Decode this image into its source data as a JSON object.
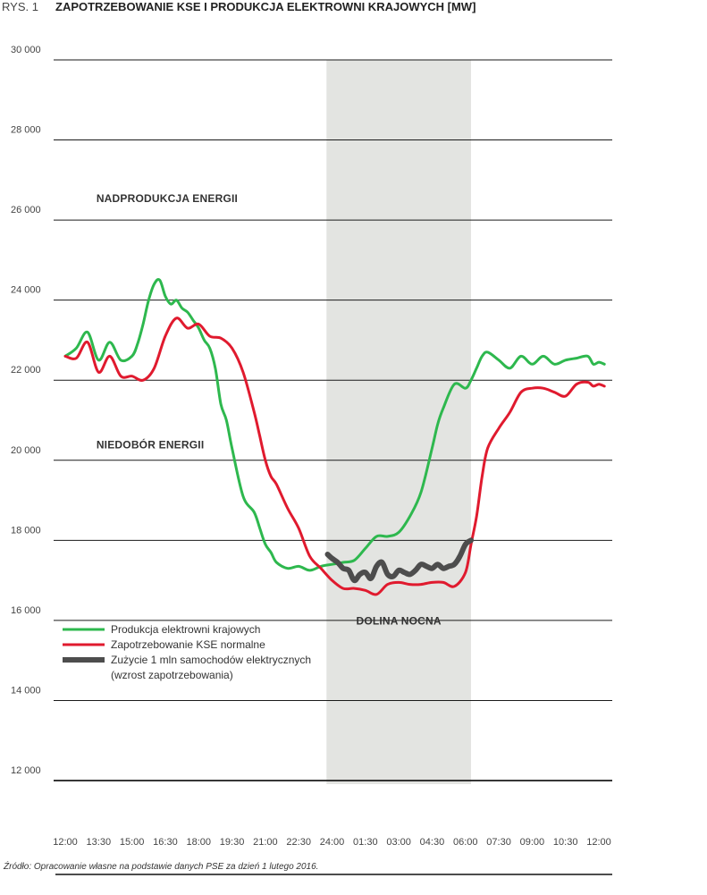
{
  "figure": {
    "label": "RYS. 1",
    "title": "ZAPOTRZEBOWANIE KSE I PRODUKCJA ELEKTROWNI KRAJOWYCH [MW]",
    "source": "Źródło: Opracowanie własne na podstawie danych PSE za dzień 1 lutego 2016."
  },
  "colors": {
    "production": "#2eb84e",
    "demand": "#e01a2e",
    "ev": "#4d4d4d",
    "shade": "#e3e4e1",
    "grid": "#1a1a1a"
  },
  "chart_data": {
    "type": "line",
    "title": "ZAPOTRZEBOWANIE KSE I PRODUKCJA ELEKTROWNI KRAJOWYCH [MW]",
    "xlabel": "",
    "ylabel": "",
    "ylim": [
      12000,
      30000
    ],
    "yticks": [
      "30 000",
      "28 000",
      "26 000",
      "24 000",
      "22 000",
      "20 000",
      "18 000",
      "16 000",
      "14 000",
      "12 000"
    ],
    "ytick_values": [
      30000,
      28000,
      26000,
      24000,
      22000,
      20000,
      18000,
      16000,
      14000,
      12000
    ],
    "xticks": [
      "12:00",
      "13:30",
      "15:00",
      "16:30",
      "18:00",
      "19:30",
      "21:00",
      "22:30",
      "24:00",
      "01:30",
      "03:00",
      "04:30",
      "06:00",
      "07:30",
      "09:00",
      "10:30",
      "12:00"
    ],
    "xlim_hours": [
      12,
      36
    ],
    "grid": true,
    "legend_position": "bottom-left",
    "shaded_region": {
      "from_hour": 23.75,
      "to_hour": 30.25,
      "label": "DOLINA NOCNA"
    },
    "annotations": [
      {
        "text": "NADPRODUKCJA ENERGII",
        "hour": 13.4,
        "value": 26450
      },
      {
        "text": "NIEDOBÓR ENERGII",
        "hour": 13.4,
        "value": 20300
      }
    ],
    "series": [
      {
        "name": "Produkcja elektrowni krajowych",
        "color": "#2eb84e",
        "width": 3,
        "x": [
          12.0,
          12.5,
          13.0,
          13.5,
          14.0,
          14.5,
          15.0,
          15.25,
          15.5,
          15.75,
          16.0,
          16.25,
          16.5,
          16.75,
          17.0,
          17.25,
          17.5,
          17.75,
          18.0,
          18.25,
          18.5,
          18.75,
          19.0,
          19.25,
          19.5,
          20.0,
          20.5,
          20.75,
          21.0,
          21.25,
          21.5,
          22.0,
          22.5,
          23.0,
          23.5,
          24.0,
          24.5,
          25.0,
          25.5,
          26.0,
          26.5,
          27.0,
          27.5,
          28.0,
          28.5,
          28.75,
          29.0,
          29.5,
          30.0,
          30.25,
          30.5,
          30.75,
          31.0,
          31.5,
          32.0,
          32.5,
          33.0,
          33.5,
          34.0,
          34.5,
          35.0,
          35.5,
          35.75,
          36.0,
          36.25
        ],
        "values": [
          22600,
          22800,
          23200,
          22500,
          22950,
          22500,
          22600,
          22900,
          23400,
          24000,
          24400,
          24500,
          24100,
          23900,
          24000,
          23800,
          23700,
          23500,
          23300,
          23000,
          22800,
          22300,
          21400,
          21000,
          20300,
          19100,
          18700,
          18300,
          17900,
          17700,
          17450,
          17300,
          17350,
          17250,
          17350,
          17400,
          17450,
          17500,
          17800,
          18100,
          18100,
          18200,
          18600,
          19200,
          20300,
          20900,
          21300,
          21900,
          21800,
          22000,
          22300,
          22600,
          22700,
          22500,
          22300,
          22600,
          22400,
          22600,
          22400,
          22500,
          22550,
          22600,
          22400,
          22450,
          22400
        ]
      },
      {
        "name": "Zapotrzebowanie KSE normalne",
        "color": "#e01a2e",
        "width": 3,
        "x": [
          12.0,
          12.5,
          13.0,
          13.5,
          14.0,
          14.5,
          15.0,
          15.5,
          16.0,
          16.5,
          17.0,
          17.5,
          18.0,
          18.5,
          19.0,
          19.5,
          20.0,
          20.5,
          20.75,
          21.0,
          21.25,
          21.5,
          22.0,
          22.5,
          23.0,
          23.5,
          24.0,
          24.5,
          25.0,
          25.5,
          26.0,
          26.5,
          27.0,
          27.5,
          28.0,
          28.5,
          29.0,
          29.5,
          30.0,
          30.25,
          30.5,
          30.75,
          31.0,
          31.5,
          32.0,
          32.5,
          33.0,
          33.5,
          34.0,
          34.5,
          35.0,
          35.5,
          35.75,
          36.0,
          36.25
        ],
        "values": [
          22600,
          22550,
          22950,
          22200,
          22600,
          22100,
          22100,
          22000,
          22300,
          23100,
          23550,
          23300,
          23400,
          23100,
          23050,
          22800,
          22200,
          21200,
          20600,
          20000,
          19600,
          19400,
          18800,
          18300,
          17600,
          17300,
          17000,
          16800,
          16800,
          16750,
          16650,
          16900,
          16950,
          16900,
          16900,
          16950,
          16950,
          16850,
          17200,
          17900,
          18600,
          19600,
          20300,
          20800,
          21200,
          21700,
          21800,
          21800,
          21700,
          21600,
          21900,
          21950,
          21850,
          21900,
          21850
        ]
      },
      {
        "name": "Zużycie 1 mln samochodów elektrycznych (wzrost zapotrzebowania)",
        "legend_lines": [
          "Zużycie 1 mln samochodów elektrycznych",
          "(wzrost zapotrzebowania)"
        ],
        "color": "#4d4d4d",
        "width": 6,
        "x": [
          23.8,
          24.0,
          24.25,
          24.5,
          24.75,
          25.0,
          25.25,
          25.5,
          25.75,
          26.0,
          26.25,
          26.5,
          26.75,
          27.0,
          27.25,
          27.5,
          27.75,
          28.0,
          28.25,
          28.5,
          28.75,
          29.0,
          29.25,
          29.5,
          29.75,
          30.0,
          30.25
        ],
        "values": [
          17650,
          17550,
          17450,
          17300,
          17250,
          17000,
          17150,
          17200,
          17050,
          17350,
          17450,
          17150,
          17100,
          17250,
          17200,
          17150,
          17250,
          17400,
          17350,
          17300,
          17400,
          17300,
          17350,
          17400,
          17600,
          17900,
          18000
        ]
      }
    ]
  }
}
